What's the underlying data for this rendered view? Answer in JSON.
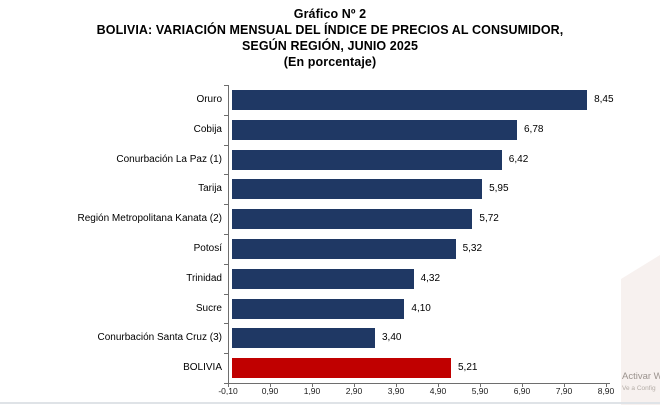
{
  "chart_data": {
    "type": "bar",
    "orientation": "horizontal",
    "title": "Gráfico Nº 2",
    "title_lines": [
      "Gráfico Nº 2",
      "BOLIVIA: VARIACIÓN MENSUAL DEL ÍNDICE DE PRECIOS AL CONSUMIDOR,",
      "SEGÚN REGIÓN, JUNIO 2025",
      "(En porcentaje)"
    ],
    "categories": [
      "Oruro",
      "Cobija",
      "Conurbación La Paz (1)",
      "Tarija",
      "Región Metropolitana Kanata (2)",
      "Potosí",
      "Trinidad",
      "Sucre",
      "Conurbación Santa Cruz (3)",
      "BOLIVIA"
    ],
    "values": [
      8.45,
      6.78,
      6.42,
      5.95,
      5.72,
      5.32,
      4.32,
      4.1,
      3.4,
      5.21
    ],
    "value_labels": [
      "8,45",
      "6,78",
      "6,42",
      "5,95",
      "5,72",
      "5,32",
      "4,32",
      "4,10",
      "3,40",
      "5,21"
    ],
    "bar_colors": [
      "#1f3864",
      "#1f3864",
      "#1f3864",
      "#1f3864",
      "#1f3864",
      "#1f3864",
      "#1f3864",
      "#1f3864",
      "#1f3864",
      "#c00000"
    ],
    "xlim": [
      -0.1,
      8.9
    ],
    "x_tick_values": [
      -0.1,
      0.9,
      1.9,
      2.9,
      3.9,
      4.9,
      5.9,
      6.9,
      7.9,
      8.9
    ],
    "x_tick_labels": [
      "-0,10",
      "0,90",
      "1,90",
      "2,90",
      "3,90",
      "4,90",
      "5,90",
      "6,90",
      "7,90",
      "8,90"
    ],
    "grid": false,
    "legend": "none",
    "colors": {
      "bar_default": "#1f3864",
      "bar_highlight": "#c00000",
      "axis": "#6e6e6e",
      "text": "#000000"
    }
  },
  "watermark": {
    "line1": "Activar W",
    "line2": "Ve a Config"
  }
}
